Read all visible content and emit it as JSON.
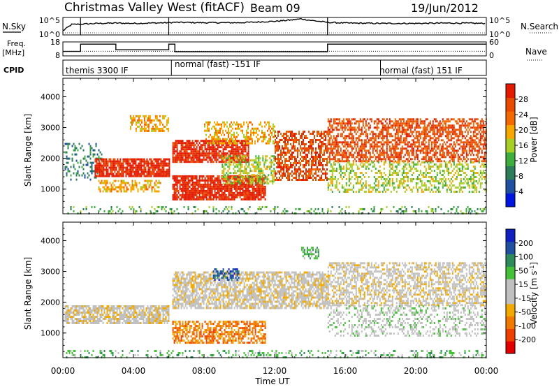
{
  "header": {
    "station": "Christmas Valley West (fitACF)",
    "beam": "Beam 09",
    "date": "19/Jun/2012"
  },
  "labels": {
    "nsky": "N.Sky",
    "nsearch": "N.Search",
    "freq_line1": "Freq.",
    "freq_line2": "[MHz]",
    "nave": "Nave",
    "cpid": "CPID"
  },
  "cpid_segments": [
    {
      "label": "themis 3300 IF"
    },
    {
      "label": "normal (fast) -151 IF"
    },
    {
      "label": "normal (fast) 151 IF"
    }
  ],
  "colors": {
    "power": [
      "#0015e0",
      "#2050a0",
      "#2e7d5a",
      "#3fae3f",
      "#a7cf28",
      "#f6a800",
      "#f46a00",
      "#e84a00",
      "#e31a00"
    ],
    "velocity": [
      "#e00000",
      "#f04000",
      "#f07a00",
      "#f2aa00",
      "#c0c0c0",
      "#c0c0c0",
      "#46c038",
      "#2f8a5c",
      "#2050a0",
      "#1020c0"
    ],
    "ground_scatter": "#bcbcbc"
  },
  "chart_data": [
    {
      "type": "line",
      "name": "noise",
      "yticks_left": [
        "10^5",
        "10^0"
      ],
      "yticks_right": [
        "10^5",
        "10^0"
      ],
      "x_hours": [
        0,
        0.5,
        1,
        1.5,
        2,
        3,
        4,
        5,
        6,
        6.3,
        8,
        10,
        12,
        13,
        13.5,
        14,
        15,
        16,
        18,
        20,
        22,
        24
      ],
      "nsky_log": [
        1.2,
        3.0,
        3.1,
        3.2,
        3.3,
        3.4,
        3.3,
        3.4,
        3.5,
        3.6,
        3.5,
        3.5,
        3.9,
        4.3,
        4.6,
        4.2,
        3.6,
        3.4,
        3.3,
        3.3,
        3.4,
        3.3
      ]
    },
    {
      "type": "line",
      "name": "frequency",
      "yticks_left": [
        "18",
        "8"
      ],
      "yticks_right": [
        "60",
        "0"
      ],
      "freq_steps": [
        {
          "x0": 0.0,
          "x1": 1.0,
          "mhz": 11.2
        },
        {
          "x0": 1.0,
          "x1": 3.0,
          "mhz": 16.4
        },
        {
          "x0": 3.0,
          "x1": 6.0,
          "mhz": 12.4
        },
        {
          "x0": 6.0,
          "x1": 6.35,
          "mhz": 16.4
        },
        {
          "x0": 6.35,
          "x1": 15.0,
          "mhz": 11.0
        },
        {
          "x0": 15.0,
          "x1": 24.0,
          "mhz": 16.4
        }
      ],
      "nave_level": 20
    },
    {
      "type": "heatmap",
      "quantity": "power",
      "ylabel": "Slant Range [km]",
      "yticks": [
        1000,
        2000,
        3000,
        4000
      ],
      "ylim": [
        200,
        4600
      ],
      "colorbar_label": "Power [dB]",
      "colorbar_ticks": [
        "28",
        "24",
        "20",
        "16",
        "12",
        "8",
        "4"
      ],
      "regions": [
        {
          "x0": 0.1,
          "x1": 2.2,
          "y0": 1300,
          "y1": 2500,
          "level": 2,
          "density": 0.25
        },
        {
          "x0": 1.8,
          "x1": 6.0,
          "y0": 1400,
          "y1": 2000,
          "level": 8,
          "density": 0.85
        },
        {
          "x0": 2.0,
          "x1": 5.5,
          "y0": 900,
          "y1": 1300,
          "level": 5,
          "density": 0.5
        },
        {
          "x0": 3.8,
          "x1": 6.0,
          "y0": 2900,
          "y1": 3400,
          "level": 5,
          "density": 0.6
        },
        {
          "x0": 6.2,
          "x1": 11.5,
          "y0": 650,
          "y1": 1450,
          "level": 8,
          "density": 0.85
        },
        {
          "x0": 6.2,
          "x1": 10.5,
          "y0": 1900,
          "y1": 2600,
          "level": 8,
          "density": 0.8
        },
        {
          "x0": 8.0,
          "x1": 12.0,
          "y0": 2500,
          "y1": 3200,
          "level": 5,
          "density": 0.45
        },
        {
          "x0": 9.0,
          "x1": 12.0,
          "y0": 1200,
          "y1": 2100,
          "level": 4,
          "density": 0.5
        },
        {
          "x0": 12.0,
          "x1": 15.0,
          "y0": 1300,
          "y1": 2900,
          "level": 7,
          "density": 0.6
        },
        {
          "x0": 15.0,
          "x1": 24.0,
          "y0": 1900,
          "y1": 3300,
          "level": 7,
          "density": 0.6
        },
        {
          "x0": 15.0,
          "x1": 24.0,
          "y0": 900,
          "y1": 1900,
          "level": 4,
          "density": 0.4
        },
        {
          "x0": 0.1,
          "x1": 24.0,
          "y0": 220,
          "y1": 450,
          "level": 3,
          "density": 0.2
        }
      ]
    },
    {
      "type": "heatmap",
      "quantity": "velocity",
      "ylabel": "Slant Range [km]",
      "yticks": [
        1000,
        2000,
        3000,
        4000
      ],
      "ylim": [
        200,
        4600
      ],
      "colorbar_label": "Velocity [m s^-1]",
      "colorbar_ticks": [
        "200",
        "100",
        "50",
        "15",
        "-15",
        "-50",
        "-100",
        "-200"
      ],
      "xlabel": "Time UT",
      "xticks": [
        "00:00",
        "04:00",
        "08:00",
        "12:00",
        "16:00",
        "20:00",
        "00:00"
      ],
      "regions": [
        {
          "x0": 0.1,
          "x1": 6.0,
          "y0": 1300,
          "y1": 1900,
          "level": 4,
          "density": 0.75
        },
        {
          "x0": 6.2,
          "x1": 15.0,
          "y0": 1800,
          "y1": 3000,
          "level": 4,
          "density": 0.7
        },
        {
          "x0": 6.2,
          "x1": 11.5,
          "y0": 700,
          "y1": 1400,
          "level": 2,
          "density": 0.6
        },
        {
          "x0": 8.5,
          "x1": 10.0,
          "y0": 2700,
          "y1": 3100,
          "level": 8,
          "density": 0.55
        },
        {
          "x0": 15.0,
          "x1": 24.0,
          "y0": 1900,
          "y1": 3300,
          "level": 4,
          "density": 0.55
        },
        {
          "x0": 15.0,
          "x1": 24.0,
          "y0": 900,
          "y1": 1900,
          "level": 5,
          "density": 0.3
        },
        {
          "x0": 13.5,
          "x1": 14.5,
          "y0": 3400,
          "y1": 3800,
          "level": 6,
          "density": 0.5
        },
        {
          "x0": 0.1,
          "x1": 24.0,
          "y0": 220,
          "y1": 450,
          "level": 6,
          "density": 0.25
        }
      ]
    }
  ]
}
